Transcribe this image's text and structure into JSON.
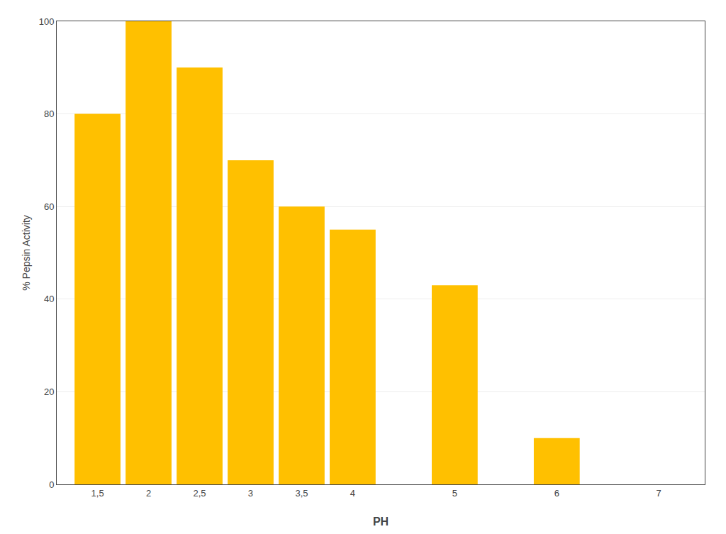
{
  "chart_data": {
    "type": "bar",
    "x": [
      1.5,
      2.0,
      2.5,
      3.0,
      3.5,
      4.0,
      5.0,
      6.0,
      7.0
    ],
    "values": [
      80,
      100,
      90,
      70,
      60,
      55,
      43,
      10,
      0
    ],
    "color": "#FFC000",
    "xlabel": "PH",
    "ylabel": "% Pepsin Activity",
    "xlim": [
      1.1,
      7.45
    ],
    "xticks": [
      {
        "value": 1.5,
        "label": "1,5"
      },
      2,
      {
        "value": 2.5,
        "label": "2,5"
      },
      3,
      {
        "value": 3.5,
        "label": "3,5"
      },
      4,
      5,
      6,
      7
    ],
    "ylim": [
      0,
      100
    ],
    "yticks": [
      0,
      20,
      40,
      60,
      80,
      100
    ],
    "grid": true
  }
}
